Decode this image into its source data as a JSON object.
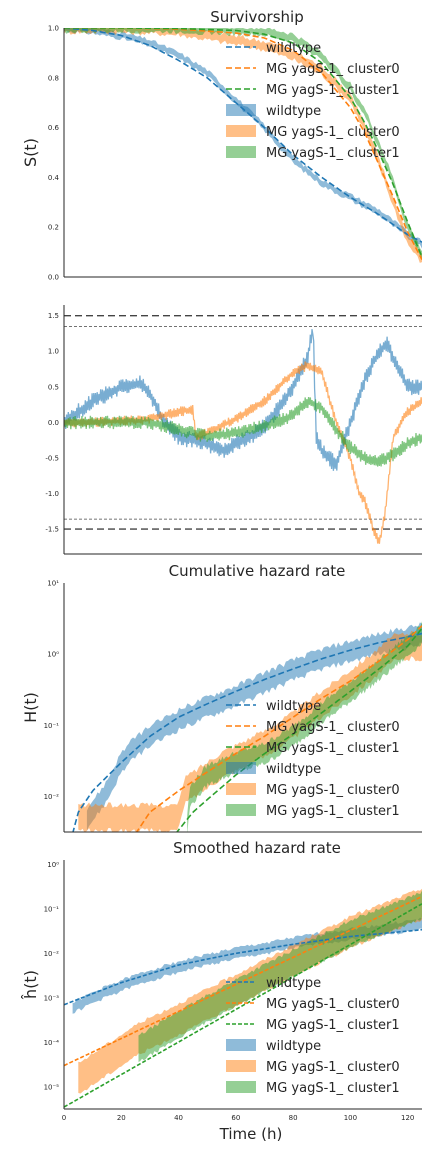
{
  "colors": {
    "wildtype": "#1f77b4",
    "cluster0": "#ff7f0e",
    "cluster1": "#2ca02c",
    "ref": "#444444"
  },
  "series_names": [
    "wildtype",
    "MG yagS-1_ cluster0",
    "MG yagS-1_ cluster1"
  ],
  "legend": {
    "lines": [
      "wildtype",
      "MG yagS-1_ cluster0",
      "MG yagS-1_ cluster1"
    ],
    "bands": [
      "wildtype",
      "MG yagS-1_ cluster0",
      "MG yagS-1_ cluster1"
    ]
  },
  "chart_data": [
    {
      "type": "line",
      "title": "Survivorship",
      "ylabel": "S(t)",
      "xlabel": "",
      "xlim": [
        0,
        125
      ],
      "ylim": [
        0,
        1
      ],
      "yticks": [
        "0.0",
        "0.2",
        "0.4",
        "0.6",
        "0.8",
        "1.0"
      ],
      "legend_position": "right",
      "series": [
        {
          "name": "wildtype",
          "kind": "fit",
          "x": [
            0,
            10,
            20,
            30,
            40,
            50,
            60,
            70,
            80,
            90,
            100,
            110,
            120,
            125
          ],
          "values": [
            1.0,
            0.99,
            0.97,
            0.93,
            0.87,
            0.8,
            0.7,
            0.6,
            0.49,
            0.4,
            0.32,
            0.25,
            0.17,
            0.14
          ]
        },
        {
          "name": "MG yagS-1_ cluster0",
          "kind": "fit",
          "x": [
            0,
            20,
            40,
            60,
            70,
            80,
            90,
            100,
            105,
            110,
            115,
            120,
            125
          ],
          "values": [
            1.0,
            1.0,
            0.995,
            0.98,
            0.96,
            0.91,
            0.82,
            0.68,
            0.58,
            0.45,
            0.32,
            0.18,
            0.07
          ]
        },
        {
          "name": "MG yagS-1_ cluster1",
          "kind": "fit",
          "x": [
            0,
            20,
            40,
            60,
            70,
            80,
            90,
            100,
            105,
            110,
            115,
            120,
            125
          ],
          "values": [
            1.0,
            1.0,
            0.998,
            0.99,
            0.975,
            0.94,
            0.86,
            0.72,
            0.62,
            0.5,
            0.37,
            0.22,
            0.08
          ]
        },
        {
          "name": "wildtype",
          "kind": "band",
          "x": [
            0,
            10,
            20,
            30,
            40,
            50,
            60,
            70,
            80,
            90,
            100,
            110,
            120,
            125
          ],
          "values": [
            1.0,
            0.99,
            0.97,
            0.94,
            0.89,
            0.82,
            0.71,
            0.6,
            0.47,
            0.38,
            0.32,
            0.26,
            0.17,
            0.13
          ],
          "width": 0.025
        },
        {
          "name": "MG yagS-1_ cluster0",
          "kind": "band",
          "x": [
            0,
            20,
            40,
            60,
            70,
            80,
            90,
            100,
            105,
            110,
            115,
            120,
            125
          ],
          "values": [
            1.0,
            1.0,
            0.99,
            0.95,
            0.93,
            0.89,
            0.83,
            0.72,
            0.6,
            0.46,
            0.3,
            0.15,
            0.07
          ],
          "width": 0.035
        },
        {
          "name": "MG yagS-1_ cluster1",
          "kind": "band",
          "x": [
            0,
            20,
            40,
            60,
            70,
            80,
            90,
            100,
            105,
            110,
            115,
            120,
            125
          ],
          "values": [
            1.0,
            1.0,
            0.999,
            0.99,
            0.985,
            0.96,
            0.89,
            0.76,
            0.66,
            0.53,
            0.38,
            0.2,
            0.09
          ],
          "width": 0.03
        }
      ]
    },
    {
      "type": "line",
      "title": "",
      "ylabel": "",
      "xlim": [
        0,
        125
      ],
      "ylim": [
        -1.85,
        1.65
      ],
      "yticks": [
        "-1.5",
        "-1.0",
        "-0.5",
        "0.0",
        "0.5",
        "1.0",
        "1.5"
      ],
      "reference_lines": [
        {
          "y": 1.5,
          "style": "long-dash"
        },
        {
          "y": -1.5,
          "style": "long-dash"
        },
        {
          "y": 1.35,
          "style": "short-dash"
        },
        {
          "y": -1.36,
          "style": "short-dash"
        }
      ],
      "series": [
        {
          "name": "wildtype",
          "x": [
            0,
            10,
            20,
            27,
            30,
            35,
            40,
            50,
            55,
            60,
            65,
            70,
            75,
            80,
            85,
            87,
            88,
            90,
            95,
            100,
            105,
            110,
            113,
            115,
            120,
            125
          ],
          "values": [
            0.0,
            0.3,
            0.5,
            0.55,
            0.4,
            0.0,
            -0.2,
            -0.3,
            -0.4,
            -0.3,
            -0.2,
            -0.05,
            0.2,
            0.5,
            0.9,
            1.35,
            -0.2,
            -0.4,
            -0.6,
            0.0,
            0.6,
            1.0,
            1.1,
            0.9,
            0.5,
            0.5
          ],
          "noise": 0.1
        },
        {
          "name": "MG yagS-1_ cluster0",
          "x": [
            0,
            10,
            30,
            40,
            45,
            46,
            50,
            60,
            70,
            75,
            80,
            85,
            90,
            95,
            100,
            103,
            105,
            108,
            110,
            112,
            115,
            120,
            125
          ],
          "values": [
            0.0,
            0.0,
            0.05,
            0.15,
            0.18,
            -0.2,
            -0.15,
            0.05,
            0.3,
            0.5,
            0.7,
            0.8,
            0.7,
            0.0,
            -0.5,
            -1.0,
            -1.1,
            -1.5,
            -1.7,
            -1.3,
            -0.2,
            0.15,
            0.3
          ],
          "noise": 0.06
        },
        {
          "name": "MG yagS-1_ cluster1",
          "x": [
            0,
            10,
            30,
            40,
            50,
            60,
            70,
            80,
            85,
            90,
            95,
            100,
            105,
            110,
            115,
            120,
            125
          ],
          "values": [
            0.0,
            0.0,
            0.0,
            -0.1,
            -0.2,
            -0.15,
            -0.05,
            0.1,
            0.3,
            0.2,
            -0.1,
            -0.35,
            -0.5,
            -0.55,
            -0.45,
            -0.3,
            -0.2
          ],
          "noise": 0.08
        }
      ]
    },
    {
      "type": "line",
      "title": "Cumulative hazard rate",
      "ylabel": "H(t)",
      "xlim": [
        0,
        125
      ],
      "yscale": "log",
      "ylim_log10": [
        -2.5,
        1
      ],
      "yticks": [
        {
          "exp": -2,
          "label": "10⁻²"
        },
        {
          "exp": -1,
          "label": "10⁻¹"
        },
        {
          "exp": 0,
          "label": "10⁰"
        },
        {
          "exp": 1,
          "label": "10¹"
        }
      ],
      "legend_position": "center-right",
      "series": [
        {
          "name": "wildtype",
          "kind": "fit",
          "x": [
            3,
            5,
            10,
            20,
            30,
            40,
            50,
            60,
            70,
            80,
            90,
            100,
            110,
            120,
            125
          ],
          "values": [
            0.003,
            0.006,
            0.012,
            0.03,
            0.07,
            0.13,
            0.2,
            0.3,
            0.44,
            0.62,
            0.86,
            1.14,
            1.45,
            1.75,
            1.95
          ]
        },
        {
          "name": "MG yagS-1_ cluster0",
          "kind": "fit",
          "x": [
            25,
            30,
            40,
            50,
            60,
            70,
            80,
            90,
            100,
            110,
            120,
            125
          ],
          "values": [
            0.003,
            0.006,
            0.012,
            0.022,
            0.04,
            0.07,
            0.13,
            0.24,
            0.42,
            0.8,
            1.6,
            2.5
          ]
        },
        {
          "name": "MG yagS-1_ cluster1",
          "kind": "fit",
          "x": [
            39,
            45,
            50,
            60,
            70,
            80,
            90,
            100,
            110,
            120,
            125
          ],
          "values": [
            0.003,
            0.006,
            0.009,
            0.02,
            0.04,
            0.075,
            0.15,
            0.3,
            0.62,
            1.3,
            2.3
          ]
        },
        {
          "name": "wildtype",
          "kind": "band",
          "x": [
            8,
            12,
            15,
            20,
            25,
            30,
            40,
            50,
            60,
            70,
            80,
            90,
            100,
            110,
            120,
            125
          ],
          "values": [
            0.005,
            0.008,
            0.012,
            0.03,
            0.05,
            0.07,
            0.12,
            0.18,
            0.26,
            0.4,
            0.6,
            0.85,
            1.1,
            1.4,
            1.7,
            1.9
          ],
          "width": 0.14
        },
        {
          "name": "MG yagS-1_ cluster0",
          "kind": "band",
          "x": [
            5,
            40,
            42,
            50,
            55,
            60,
            70,
            80,
            90,
            100,
            110,
            115,
            120,
            125
          ],
          "values": [
            0.005,
            0.005,
            0.012,
            0.02,
            0.028,
            0.035,
            0.055,
            0.1,
            0.2,
            0.4,
            0.8,
            1.2,
            1.3,
            1.3
          ],
          "width": 0.18
        },
        {
          "name": "MG yagS-1_ cluster1",
          "kind": "band",
          "x": [
            43,
            44,
            50,
            60,
            70,
            80,
            90,
            100,
            110,
            120,
            125
          ],
          "values": [
            0.004,
            0.01,
            0.02,
            0.03,
            0.04,
            0.07,
            0.15,
            0.3,
            0.6,
            1.3,
            2.0
          ],
          "width": 0.14
        }
      ]
    },
    {
      "type": "line",
      "title": "Smoothed hazard rate",
      "ylabel": "ĥ(t)",
      "xlabel": "Time (h)",
      "xlim": [
        0,
        125
      ],
      "xticks": [
        "0",
        "20",
        "40",
        "60",
        "80",
        "100",
        "120"
      ],
      "yscale": "log",
      "ylim_log10": [
        -5.5,
        0.1
      ],
      "yticks": [
        {
          "exp": -5,
          "label": "10⁻⁵"
        },
        {
          "exp": -4,
          "label": "10⁻⁴"
        },
        {
          "exp": -3,
          "label": "10⁻³"
        },
        {
          "exp": -2,
          "label": "10⁻²"
        },
        {
          "exp": -1,
          "label": "10⁻¹"
        },
        {
          "exp": 0,
          "label": "10⁰"
        }
      ],
      "legend_position": "lower-right",
      "series": [
        {
          "name": "wildtype",
          "kind": "fit",
          "x": [
            0,
            20,
            40,
            60,
            80,
            100,
            125
          ],
          "values": [
            0.0007,
            0.0022,
            0.0055,
            0.01,
            0.016,
            0.024,
            0.034
          ]
        },
        {
          "name": "MG yagS-1_ cluster0",
          "kind": "fit",
          "x": [
            0,
            125
          ],
          "values": [
            3e-05,
            0.19
          ]
        },
        {
          "name": "MG yagS-1_ cluster1",
          "kind": "fit",
          "x": [
            0,
            125
          ],
          "values": [
            3.5e-06,
            0.13
          ]
        },
        {
          "name": "wildtype",
          "kind": "band",
          "x": [
            3,
            10,
            20,
            30,
            40,
            50,
            60,
            70,
            80,
            90,
            100,
            110,
            125
          ],
          "values": [
            0.0006,
            0.001,
            0.0019,
            0.0032,
            0.005,
            0.0072,
            0.01,
            0.013,
            0.017,
            0.022,
            0.027,
            0.033,
            0.045
          ],
          "width": 0.12
        },
        {
          "name": "MG yagS-1_ cluster0",
          "kind": "band",
          "x": [
            5,
            26,
            40,
            60,
            80,
            100,
            125
          ],
          "values": [
            1.5e-05,
            0.00012,
            0.00033,
            0.0015,
            0.0068,
            0.03,
            0.13
          ],
          "width": 0.35
        },
        {
          "name": "MG yagS-1_ cluster1",
          "kind": "band",
          "x": [
            26,
            40,
            60,
            80,
            100,
            125
          ],
          "values": [
            7e-05,
            0.00025,
            0.0013,
            0.006,
            0.028,
            0.12
          ],
          "width": 0.3
        }
      ]
    }
  ]
}
